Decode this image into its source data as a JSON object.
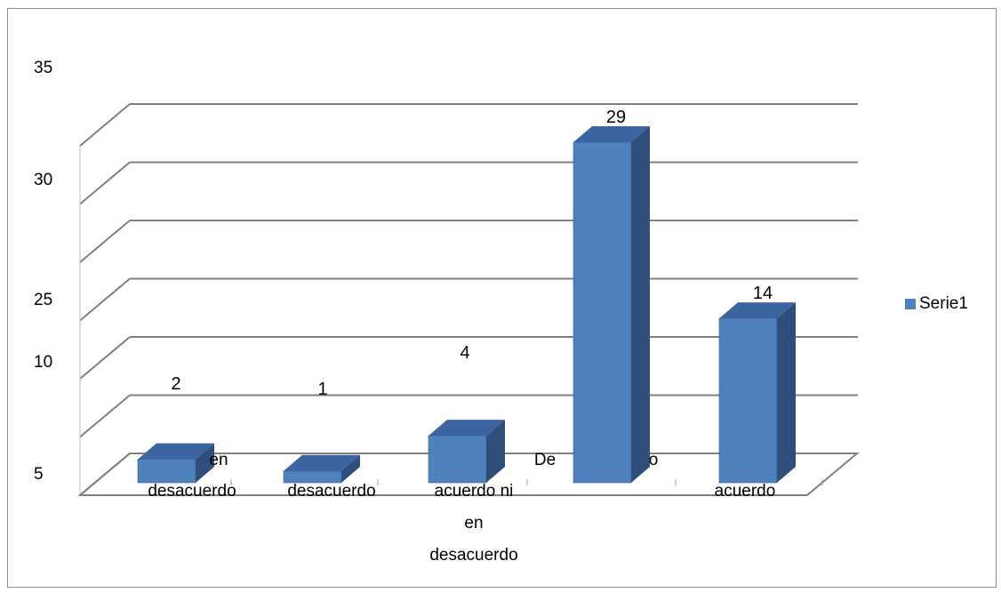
{
  "chart_data": {
    "type": "bar",
    "title": "",
    "xlabel": "",
    "ylabel": "",
    "y_tick_labels": [
      "35",
      "30",
      "25",
      "10",
      "5"
    ],
    "categories": [
      [
        "en",
        "desacuerdo"
      ],
      [
        "desacuerdo"
      ],
      [
        "acuerdo ni",
        "en",
        "desacuerdo"
      ],
      [
        "De",
        "o"
      ],
      [
        "acuerdo"
      ]
    ],
    "series": [
      {
        "name": "Serie1",
        "values": [
          2,
          1,
          4,
          29,
          14
        ]
      }
    ],
    "data_labels": [
      "2",
      "1",
      "4",
      "29",
      "14"
    ],
    "ylim": [
      0,
      35
    ],
    "grid": true,
    "legend_position": "right",
    "style": "3d-column"
  },
  "colors": {
    "bar_front": "#4F81BD",
    "bar_side": "#2F4F7A",
    "bar_top": "#3B64A0",
    "gridline": "#808080",
    "frame": "#8c8c8c"
  }
}
